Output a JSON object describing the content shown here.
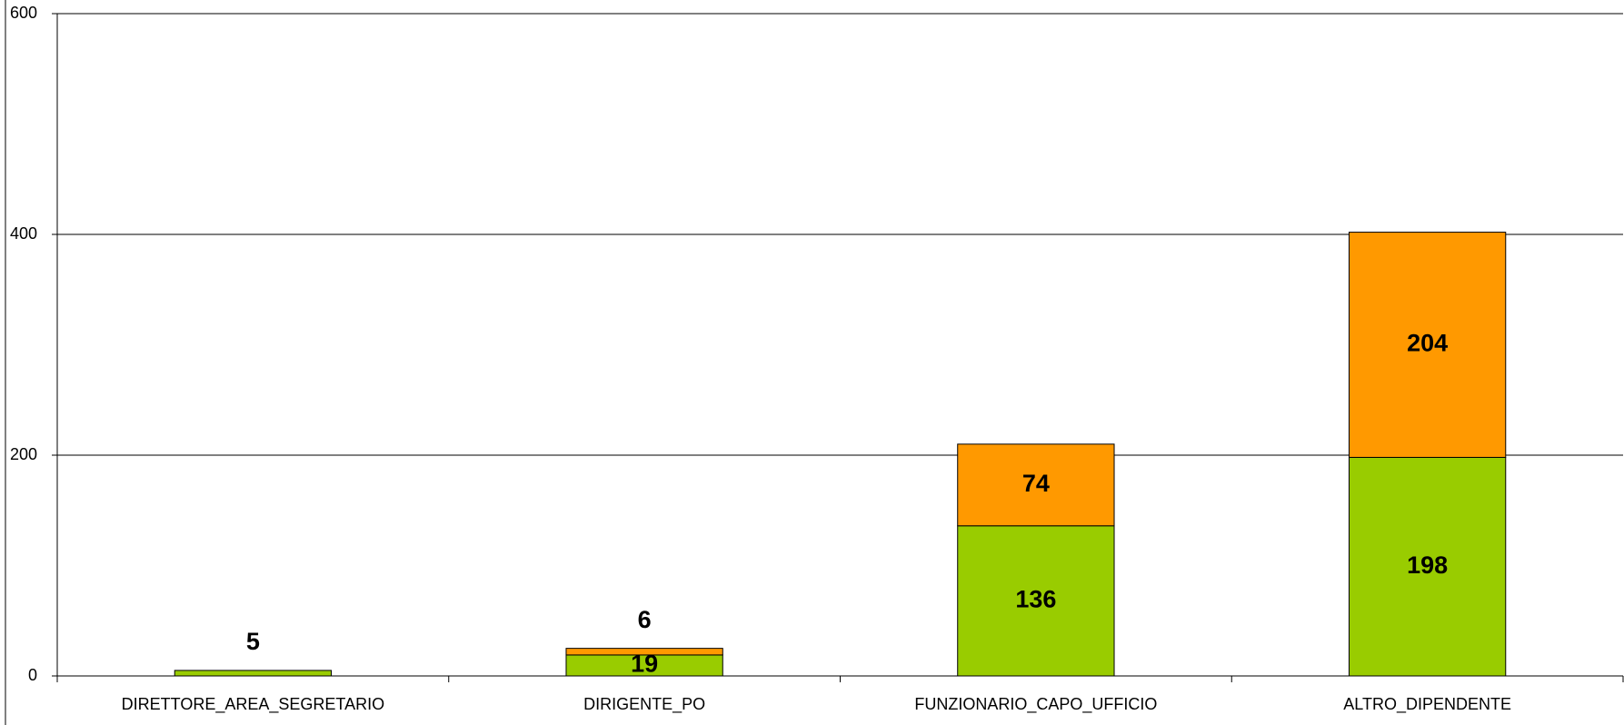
{
  "chart_data": {
    "type": "stacked_bar",
    "categories": [
      "DIRETTORE_AREA_SEGRETARIO",
      "DIRIGENTE_PO",
      "FUNZIONARIO_CAPO_UFFICIO",
      "ALTRO_DIPENDENTE"
    ],
    "series": [
      {
        "color": "#99cc00",
        "values": [
          5,
          19,
          136,
          198
        ]
      },
      {
        "color": "#ff9900",
        "values": [
          null,
          6,
          74,
          204
        ]
      }
    ],
    "ylim": [
      0,
      600
    ],
    "yticks": [
      0,
      200,
      400,
      600
    ],
    "grid": true
  }
}
